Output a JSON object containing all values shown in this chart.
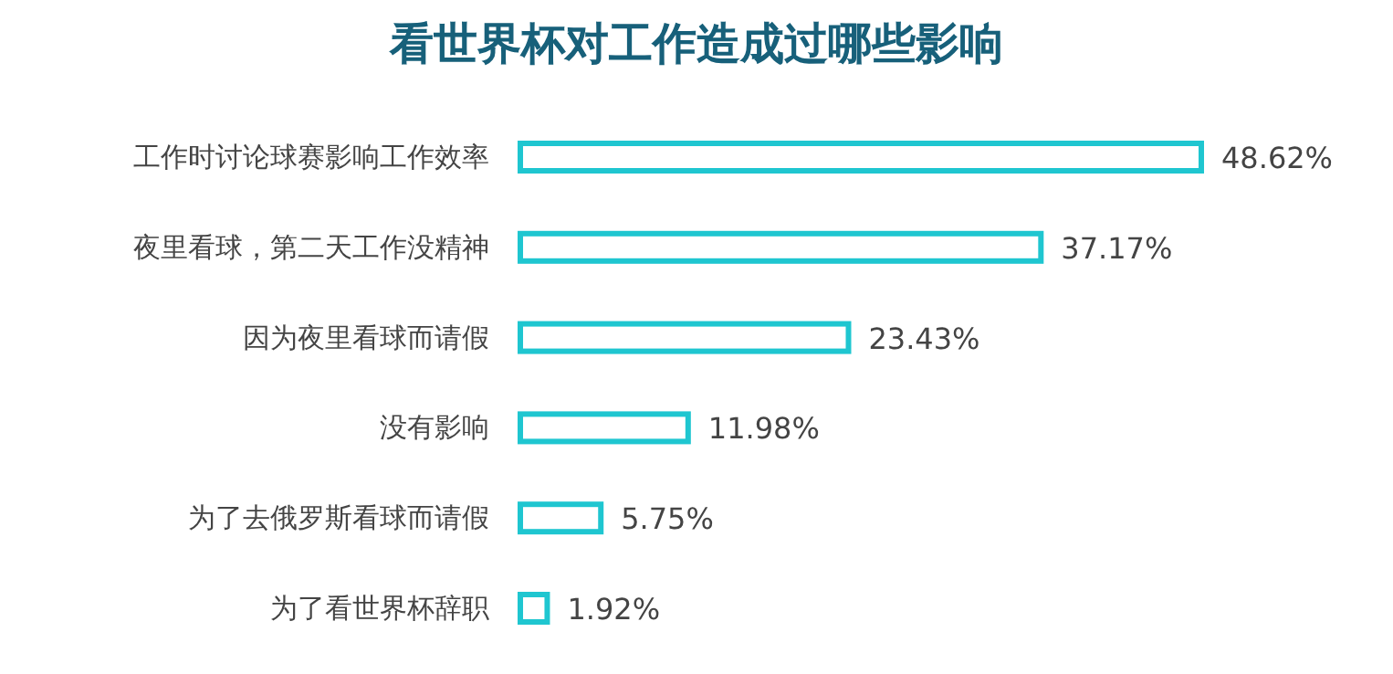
{
  "chart_data": {
    "type": "bar",
    "orientation": "horizontal",
    "title": "看世界杯对工作造成过哪些影响",
    "categories": [
      "工作时讨论球赛影响工作效率",
      "夜里看球，第二天工作没精神",
      "因为夜里看球而请假",
      "没有影响",
      "为了去俄罗斯看球而请假",
      "为了看世界杯辞职"
    ],
    "values": [
      48.62,
      37.17,
      23.43,
      11.98,
      5.75,
      1.92
    ],
    "value_labels": [
      "48.62%",
      "37.17%",
      "23.43%",
      "11.98%",
      "5.75%",
      "1.92%"
    ],
    "color": "#1fc6d0"
  }
}
